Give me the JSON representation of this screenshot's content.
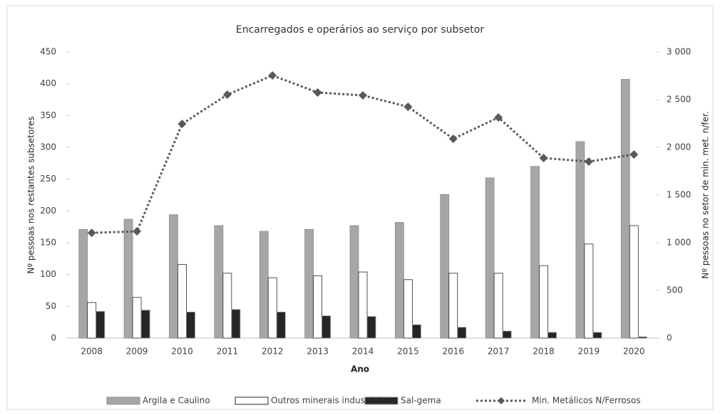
{
  "chart_data": {
    "type": "bar_line",
    "title": "Encarregados e operários ao serviço por subsetor",
    "x_label": "Ano",
    "y_label": "Nº pessoas nos restantes subsetores",
    "y2_label": "Nº pessoas no setor de min. met. n/fer.",
    "categories": [
      "2008",
      "2009",
      "2010",
      "2011",
      "2012",
      "2013",
      "2014",
      "2015",
      "2016",
      "2017",
      "2018",
      "2019",
      "2020"
    ],
    "series": [
      {
        "name": "Argila e Caulino",
        "type": "bar",
        "color": "#a6a6a6",
        "values": [
          171,
          187,
          194,
          177,
          168,
          171,
          177,
          182,
          226,
          252,
          270,
          309,
          407
        ]
      },
      {
        "name": "Outros minerais industriais",
        "type": "bar",
        "color": "#ffffff",
        "values": [
          56,
          64,
          116,
          102,
          95,
          98,
          104,
          92,
          102,
          102,
          114,
          148,
          177
        ]
      },
      {
        "name": "Sal-gema",
        "type": "bar",
        "color": "#262626",
        "values": [
          42,
          44,
          41,
          45,
          41,
          35,
          34,
          21,
          17,
          11,
          9,
          9,
          2
        ]
      },
      {
        "name": "Min. Metálicos N/Ferrosos",
        "type": "line",
        "axis": "y2",
        "color": "#595959",
        "values": [
          1104,
          1119,
          2246,
          2552,
          2754,
          2575,
          2545,
          2425,
          2090,
          2313,
          1888,
          1851,
          1925
        ]
      }
    ],
    "ylim": [
      0,
      450
    ],
    "yticks": [
      0,
      50,
      100,
      150,
      200,
      250,
      300,
      350,
      400,
      450
    ],
    "y2lim": [
      0,
      3000
    ],
    "y2ticks": [
      0,
      500,
      {
        "value": 1000,
        "label": "1 000"
      },
      {
        "value": 1500,
        "label": "1 500"
      },
      {
        "value": 2000,
        "label": "2 000"
      },
      {
        "value": 2500,
        "label": "2 500"
      },
      {
        "value": 3000,
        "label": "3 000"
      }
    ],
    "legend": "bottom"
  }
}
